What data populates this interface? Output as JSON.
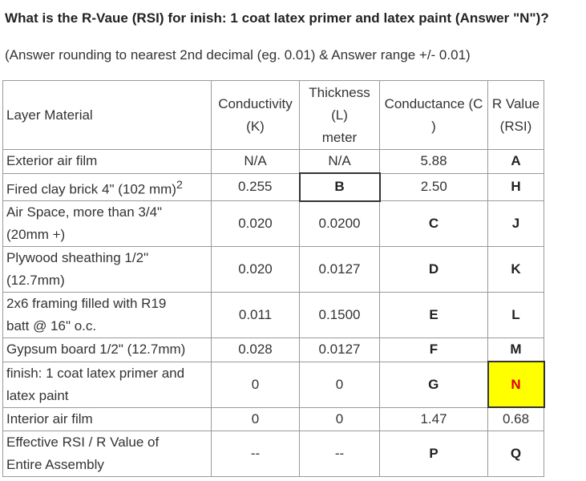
{
  "question": "What is the R-Vaue (RSI) for  inish: 1 coat latex primer and latex paint (Answer \"N\")?",
  "note": "(Answer rounding to nearest 2nd decimal (eg. 0.01) & Answer range +/- 0.01)",
  "table": {
    "headers": {
      "material": "Layer Material",
      "conductivity": "Conductivity",
      "conductivity_unit": "(K)",
      "thickness": "Thickness",
      "thickness_unit": "(L)",
      "thickness_sub": "meter",
      "conductance": "Conductance (C",
      "conductance_close": ")",
      "rvalue": "R Value",
      "rvalue_unit": "(RSI)"
    },
    "rows": [
      {
        "material_1": "Exterior air film",
        "k": "N/A",
        "l": "N/A",
        "c": "5.88",
        "r": "A"
      },
      {
        "material_1": "Fired clay brick 4\" (102 mm)",
        "sup": "2",
        "k": "0.255",
        "l": "B",
        "c": "2.50",
        "r": "H"
      },
      {
        "material_1": "Air Space, more than 3/4\"",
        "material_2": "(20mm +)",
        "k": "0.020",
        "l": "0.0200",
        "c": "C",
        "r": "J"
      },
      {
        "material_1": "Plywood sheathing 1/2\"",
        "material_2": "(12.7mm)",
        "k": "0.020",
        "l": "0.0127",
        "c": "D",
        "r": "K"
      },
      {
        "material_1": "2x6 framing filled with R19",
        "material_2": "batt @ 16\" o.c.",
        "k": "0.011",
        "l": "0.1500",
        "c": "E",
        "r": "L"
      },
      {
        "material_1": "Gypsum board 1/2\" (12.7mm)",
        "k": "0.028",
        "l": "0.0127",
        "c": "F",
        "r": "M"
      },
      {
        "material_1": "finish: 1 coat latex primer and",
        "material_2": "latex paint",
        "k": "0",
        "l": "0",
        "c": "G",
        "r": "N"
      },
      {
        "material_1": "Interior air film",
        "k": "0",
        "l": "0",
        "c": "1.47",
        "r": "0.68"
      },
      {
        "material_1": "Effective RSI / R Value of",
        "material_2": "Entire Assembly",
        "k": "--",
        "l": "--",
        "c": "P",
        "r": "Q"
      }
    ]
  }
}
